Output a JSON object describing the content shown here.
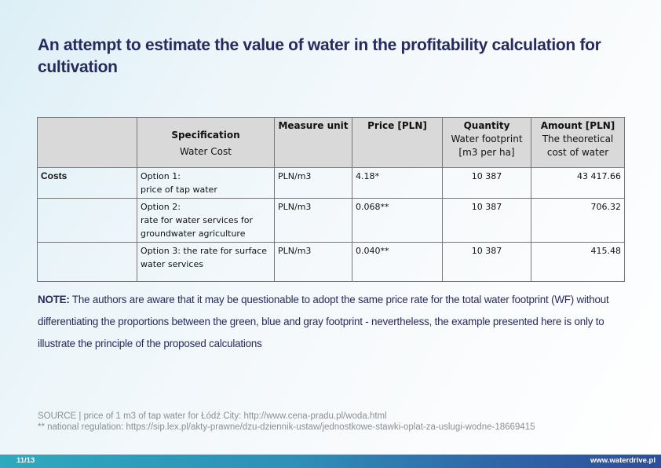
{
  "title": "An attempt to estimate the value of water in the profitability calculation for cultivation",
  "table": {
    "headers": {
      "col1": "",
      "spec_bold": "Specification",
      "spec_sub": "Water Cost",
      "unit_bold": "Measure unit",
      "price_bold": "Price [PLN]",
      "qty_bold": "Quantity",
      "qty_sub1": "Water footprint",
      "qty_sub2": "[m3 per ha]",
      "amount_bold": "Amount [PLN]",
      "amount_sub1": "The theoretical",
      "amount_sub2": "cost of water"
    },
    "rows": [
      {
        "label": "Costs",
        "spec_line1": "Option 1:",
        "spec_line2": "price of tap water",
        "spec_line3": "",
        "unit": "PLN/m3",
        "price": "4.18*",
        "quantity": "10 387",
        "amount": "43 417.66"
      },
      {
        "label": "",
        "spec_line1": "Option 2:",
        "spec_line2": "rate for water services for",
        "spec_line3": "groundwater agriculture",
        "unit": "PLN/m3",
        "price": "0.068**",
        "quantity": "10 387",
        "amount": "706.32"
      },
      {
        "label": "",
        "spec_line1": "Option 3: the rate for surface",
        "spec_line2": "water services",
        "spec_line3": "",
        "unit": "PLN/m3",
        "price": "0.040**",
        "quantity": "10 387",
        "amount": "415.48"
      }
    ]
  },
  "note": {
    "label": "NOTE:",
    "text": " The authors are aware that it may be questionable to adopt the same price rate for the total water footprint (WF) without differentiating the proportions between the green, blue and gray footprint - nevertheless, the example presented here is only to illustrate the principle of the proposed calculations"
  },
  "source": {
    "line1": "SOURCE |  price of 1 m3 of tap water for Łódź City: http://www.cena-pradu.pl/woda.html",
    "line2": "** national regulation: https://sip.lex.pl/akty-prawne/dzu-dziennik-ustaw/jednostkowe-stawki-oplat-za-uslugi-wodne-18669415"
  },
  "footer": {
    "page": "11/13",
    "url": "www.waterdrive.pl"
  },
  "colors": {
    "title": "#272a5c",
    "header_bg": "#d9d9d9",
    "footer_start": "#2ea9be",
    "footer_end": "#2e4f9a"
  }
}
